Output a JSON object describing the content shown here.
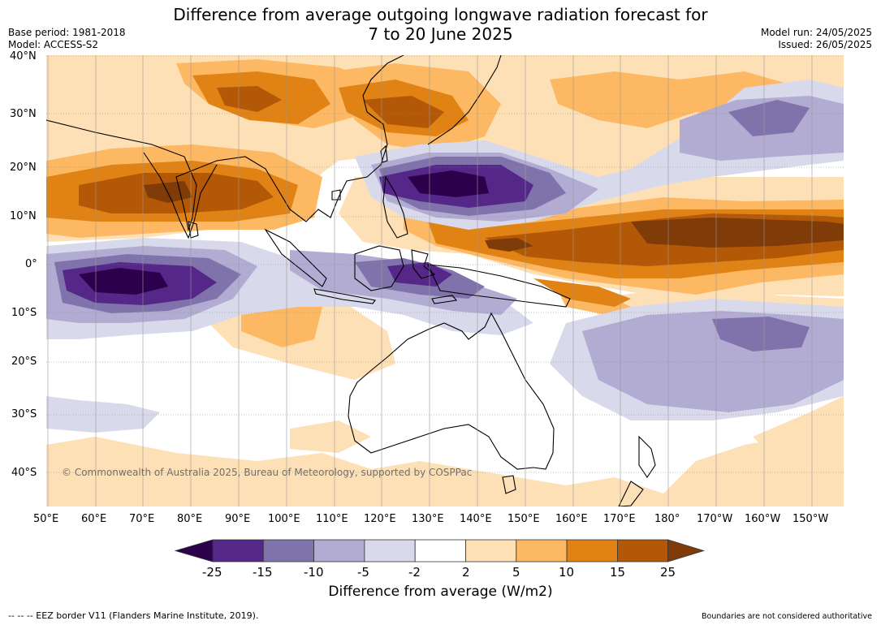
{
  "header": {
    "title_line1": "Difference from average outgoing longwave radiation forecast for",
    "title_line2": "7 to 20 June 2025",
    "base_period": "Base period: 1981-2018",
    "model": "Model: ACCESS-S2",
    "model_run": "Model run: 24/05/2025",
    "issued": "Issued: 26/05/2025"
  },
  "map": {
    "lat_labels": [
      "40°N",
      "30°N",
      "20°N",
      "10°N",
      "0°",
      "10°S",
      "20°S",
      "30°S",
      "40°S"
    ],
    "lon_labels": [
      "50°E",
      "60°E",
      "70°E",
      "80°E",
      "90°E",
      "100°E",
      "110°E",
      "120°E",
      "130°E",
      "140°E",
      "150°E",
      "160°E",
      "170°E",
      "180°",
      "170°W",
      "160°W",
      "150°W"
    ],
    "copyright": "© Commonwealth of Australia 2025, Bureau of Meteorology, supported by COSPPac"
  },
  "colorbar": {
    "ticks": [
      "-25",
      "-15",
      "-10",
      "-5",
      "-2",
      "2",
      "5",
      "10",
      "15",
      "25"
    ],
    "label": "Difference from average (W/m2)",
    "colors": [
      "#2d004b",
      "#542788",
      "#8073ac",
      "#b2abd2",
      "#d8daeb",
      "#ffffff",
      "#fee0b6",
      "#fdb863",
      "#e08214",
      "#b35806",
      "#7f3b08"
    ]
  },
  "footer": {
    "eez": "--  --  -- EEZ border V11 (Flanders Marine Institute, 2019).",
    "disclaimer": "Boundaries are not considered authoritative"
  }
}
